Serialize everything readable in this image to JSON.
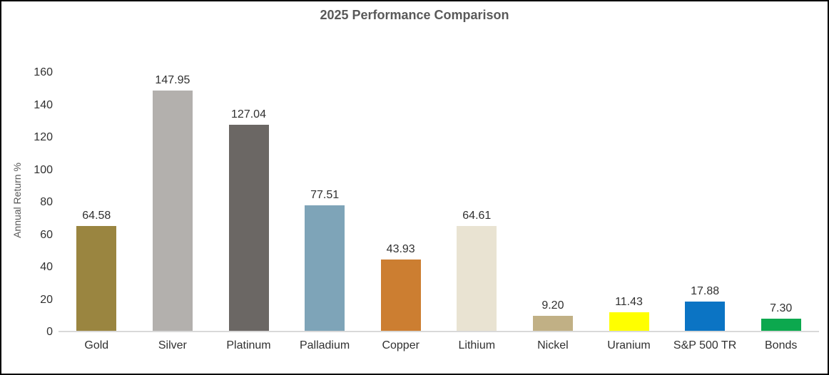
{
  "chart_data": {
    "type": "bar",
    "title": "2025 Performance Comparison",
    "ylabel": "Annual Return %",
    "xlabel": "",
    "categories": [
      "Gold",
      "Silver",
      "Platinum",
      "Palladium",
      "Copper",
      "Lithium",
      "Nickel",
      "Uranium",
      "S&P 500 TR",
      "Bonds"
    ],
    "values": [
      64.58,
      147.95,
      127.04,
      77.51,
      43.93,
      64.61,
      9.2,
      11.43,
      17.88,
      7.3
    ],
    "value_labels": [
      "64.58",
      "147.95",
      "127.04",
      "77.51",
      "43.93",
      "64.61",
      "9.20",
      "11.43",
      "17.88",
      "7.30"
    ],
    "bar_colors": [
      "#9A8540",
      "#B3B0AD",
      "#6B6764",
      "#7EA4B8",
      "#CC7E31",
      "#E9E3D2",
      "#C1B085",
      "#FFFF00",
      "#0B74C4",
      "#0CA84E"
    ],
    "ylim": [
      0,
      160
    ],
    "ytick_step": 20,
    "ytick_labels": [
      "0",
      "20",
      "40",
      "60",
      "80",
      "100",
      "120",
      "140",
      "160"
    ],
    "grid": false,
    "legend": false,
    "data_labels": true
  },
  "colors": {
    "title_text": "#595959",
    "axis_title_text": "#595959",
    "tick_text": "#303030",
    "data_label_text": "#303030",
    "baseline": "#D9D9D9",
    "background": "#FFFFFF",
    "border": "#000000"
  }
}
